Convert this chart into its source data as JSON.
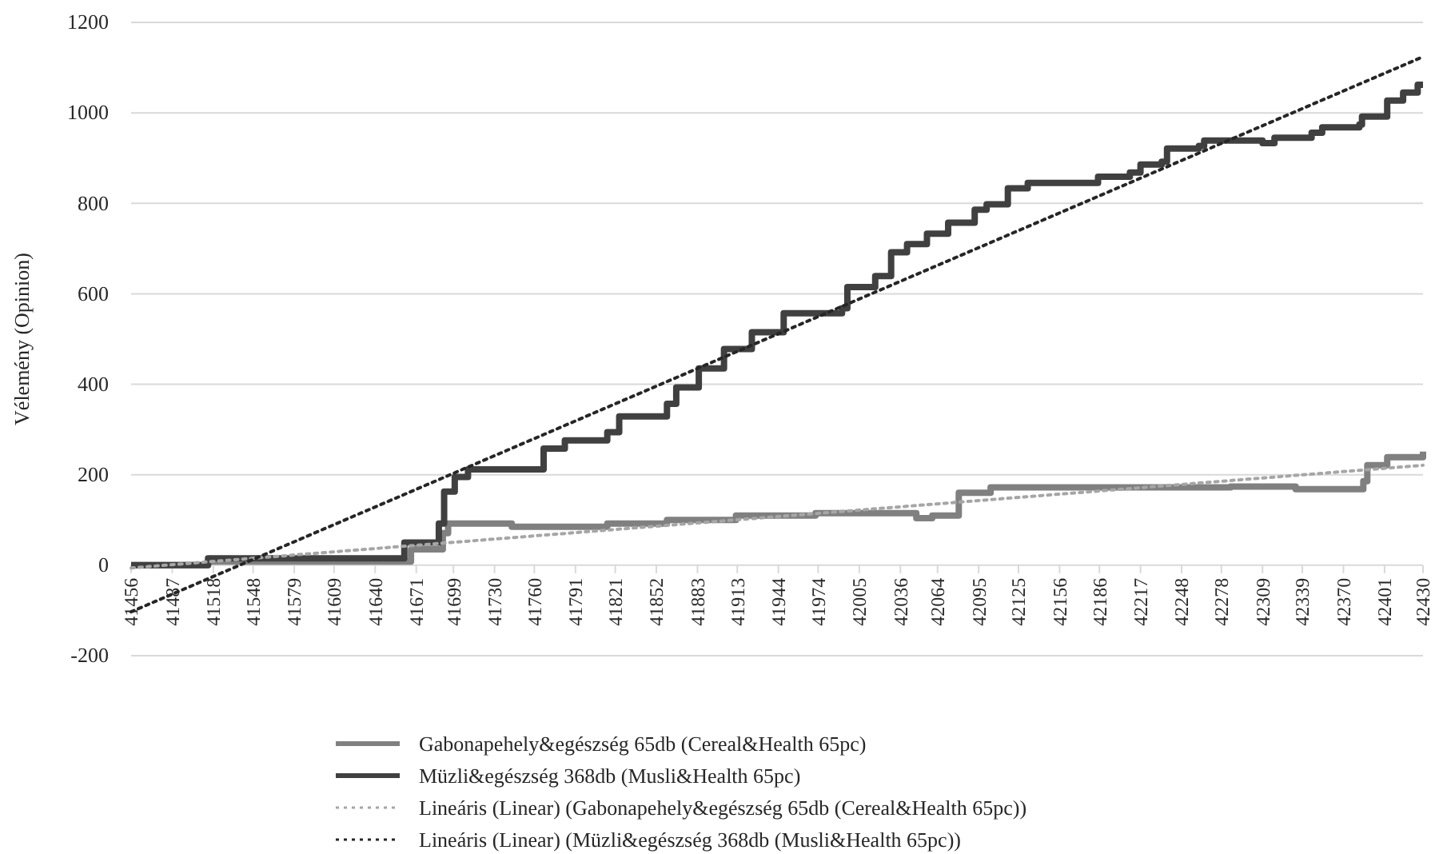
{
  "chart_data": {
    "type": "step",
    "ylabel": "Vélemény (Opinion)",
    "xlim": [
      41456,
      42430
    ],
    "ylim": [
      -200,
      1200
    ],
    "xticks": [
      41456,
      41487,
      41518,
      41548,
      41579,
      41609,
      41640,
      41671,
      41699,
      41730,
      41760,
      41791,
      41821,
      41852,
      41883,
      41913,
      41944,
      41974,
      42005,
      42036,
      42064,
      42095,
      42125,
      42156,
      42186,
      42217,
      42248,
      42278,
      42309,
      42339,
      42370,
      42401,
      42430
    ],
    "yticks": [
      -200,
      0,
      200,
      400,
      600,
      800,
      1000,
      1200
    ],
    "grid": "y",
    "legend": "bottom",
    "series": [
      {
        "name": "Gabonapehely&egészség 65db (Cereal&Health 65pc)",
        "color": "#808080",
        "line_style": "solid",
        "x": [
          41456,
          41514,
          41667,
          41691,
          41695,
          41743,
          41815,
          41860,
          41912,
          41972,
          42020,
          42048,
          42060,
          42080,
          42104,
          42285,
          42334,
          42370,
          42385,
          42388,
          42403,
          42430
        ],
        "values": [
          0,
          8,
          35,
          71,
          92,
          85,
          92,
          100,
          110,
          115,
          115,
          104,
          110,
          160,
          172,
          174,
          168,
          168,
          186,
          221,
          239,
          251
        ]
      },
      {
        "name": "Müzli&egészség 368db (Musli&Health 65pc)",
        "color": "#404040",
        "line_style": "solid",
        "x": [
          41456,
          41514,
          41646,
          41662,
          41686,
          41688,
          41692,
          41700,
          41710,
          41743,
          41767,
          41783,
          41815,
          41824,
          41860,
          41867,
          41884,
          41903,
          41924,
          41948,
          41992,
          41996,
          42017,
          42029,
          42041,
          42056,
          42072,
          42092,
          42101,
          42117,
          42132,
          42168,
          42185,
          42209,
          42217,
          42233,
          42237,
          42261,
          42265,
          42297,
          42309,
          42318,
          42346,
          42354,
          42382,
          42384,
          42402,
          42403,
          42415,
          42426,
          42430
        ],
        "values": [
          0,
          15,
          15,
          50,
          50,
          92,
          163,
          195,
          212,
          212,
          258,
          276,
          294,
          329,
          357,
          393,
          435,
          478,
          515,
          557,
          568,
          615,
          639,
          692,
          710,
          733,
          757,
          786,
          798,
          833,
          845,
          845,
          859,
          868,
          886,
          892,
          921,
          927,
          939,
          939,
          933,
          945,
          956,
          968,
          974,
          992,
          992,
          1027,
          1045,
          1062,
          1062
        ]
      },
      {
        "name": "Lineáris (Linear) (Gabonapehely&egészség 65db (Cereal&Health 65pc))",
        "type": "line",
        "color": "#a6a6a6",
        "line_style": "dotted",
        "x": [
          41456,
          42430
        ],
        "values": [
          -6,
          221
        ]
      },
      {
        "name": "Lineáris (Linear) (Müzli&egészség 368db (Musli&Health 65pc))",
        "type": "line",
        "color": "#262626",
        "line_style": "dotted",
        "x": [
          41456,
          42430
        ],
        "values": [
          -103,
          1124
        ]
      }
    ]
  }
}
